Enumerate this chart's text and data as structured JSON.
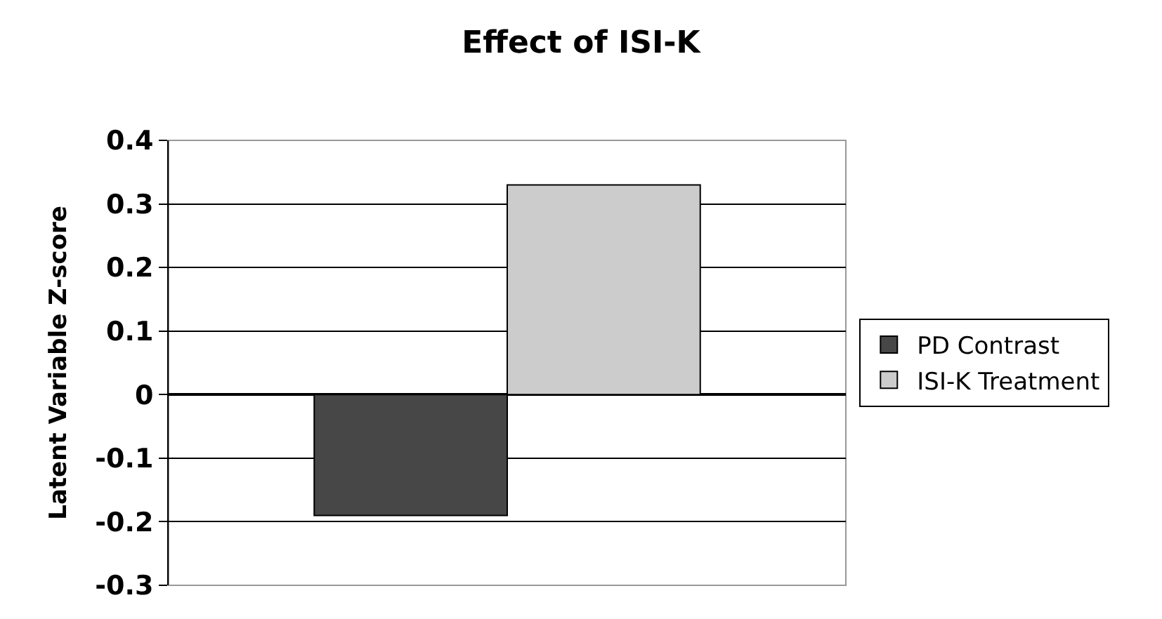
{
  "chart_data": {
    "type": "bar",
    "title": "Effect of ISI-K",
    "ylabel": "Latent Variable Z-score",
    "categories": [
      null
    ],
    "series": [
      {
        "name": "PD Contrast",
        "color": "#474747",
        "values": [
          -0.19
        ]
      },
      {
        "name": "ISI-K Treatment",
        "color": "#cccccc",
        "values": [
          0.33
        ]
      }
    ],
    "ylim": [
      -0.3,
      0.4
    ],
    "yticks": [
      -0.3,
      -0.2,
      -0.1,
      0,
      0.1,
      0.2,
      0.3,
      0.4
    ],
    "grid": "y",
    "legend": "right"
  }
}
